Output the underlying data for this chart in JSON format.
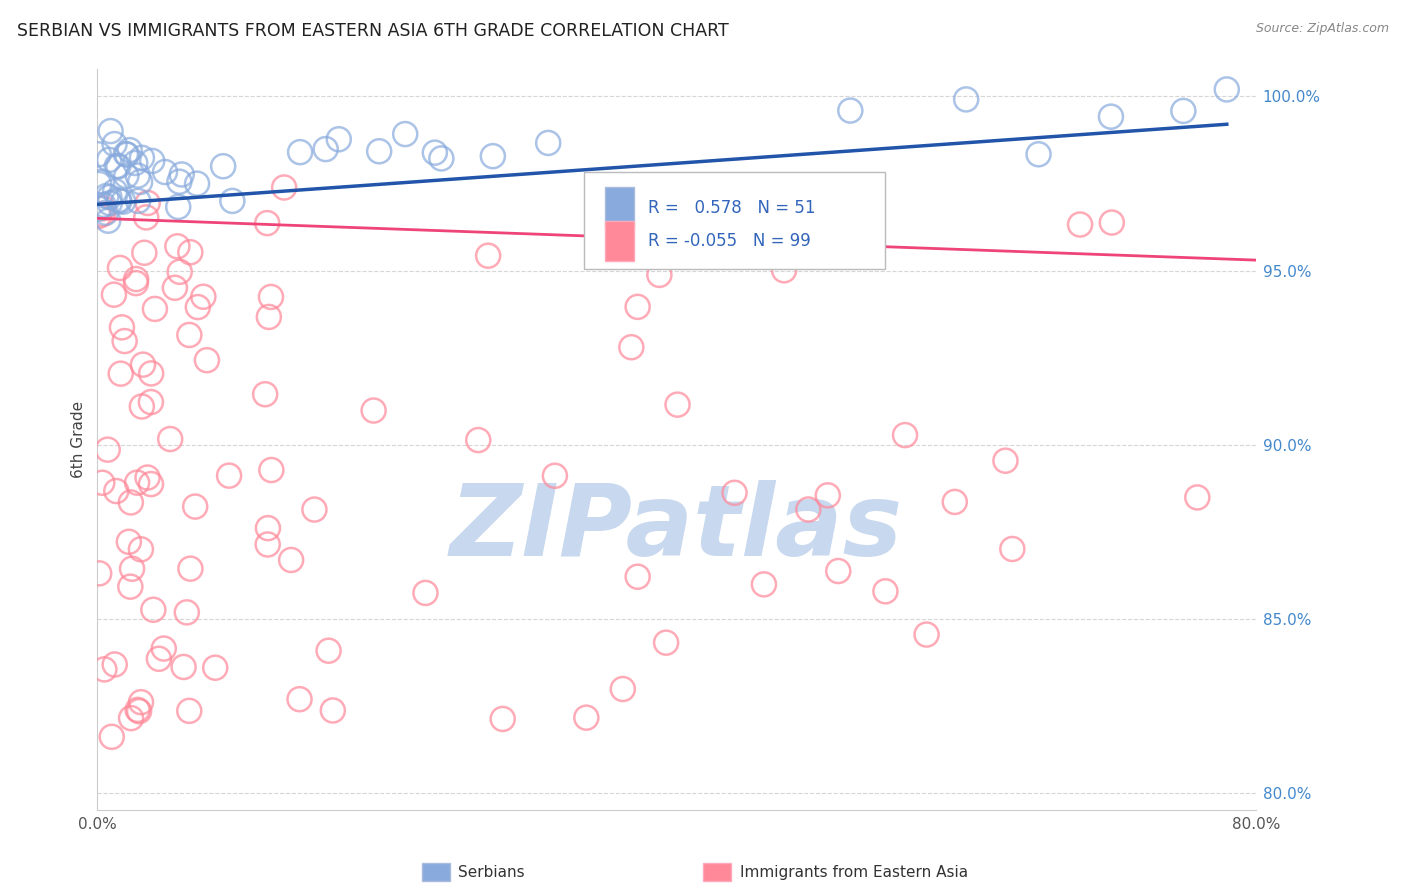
{
  "title": "SERBIAN VS IMMIGRANTS FROM EASTERN ASIA 6TH GRADE CORRELATION CHART",
  "source": "Source: ZipAtlas.com",
  "ylabel": "6th Grade",
  "legend_label1": "Serbians",
  "legend_label2": "Immigrants from Eastern Asia",
  "r1": 0.578,
  "n1": 51,
  "r2": -0.055,
  "n2": 99,
  "color1": "#88AADD",
  "color2": "#FF8899",
  "line_color1": "#2255AA",
  "line_color2": "#EE4477",
  "xlim": [
    0.0,
    0.8
  ],
  "ylim": [
    0.795,
    1.008
  ],
  "xticks": [
    0.0,
    0.1,
    0.2,
    0.3,
    0.4,
    0.5,
    0.6,
    0.7,
    0.8
  ],
  "xticklabels": [
    "0.0%",
    "",
    "",
    "",
    "",
    "",
    "",
    "",
    "80.0%"
  ],
  "yticks": [
    0.8,
    0.85,
    0.9,
    0.95,
    1.0
  ],
  "yticklabels": [
    "80.0%",
    "85.0%",
    "90.0%",
    "95.0%",
    "100.0%"
  ],
  "blue_trend_x": [
    0.0,
    0.78
  ],
  "blue_trend_y": [
    0.969,
    0.992
  ],
  "pink_trend_x": [
    0.0,
    0.8
  ],
  "pink_trend_y": [
    0.965,
    0.953
  ],
  "watermark": "ZIPatlas",
  "watermark_color": "#C8D8EE"
}
